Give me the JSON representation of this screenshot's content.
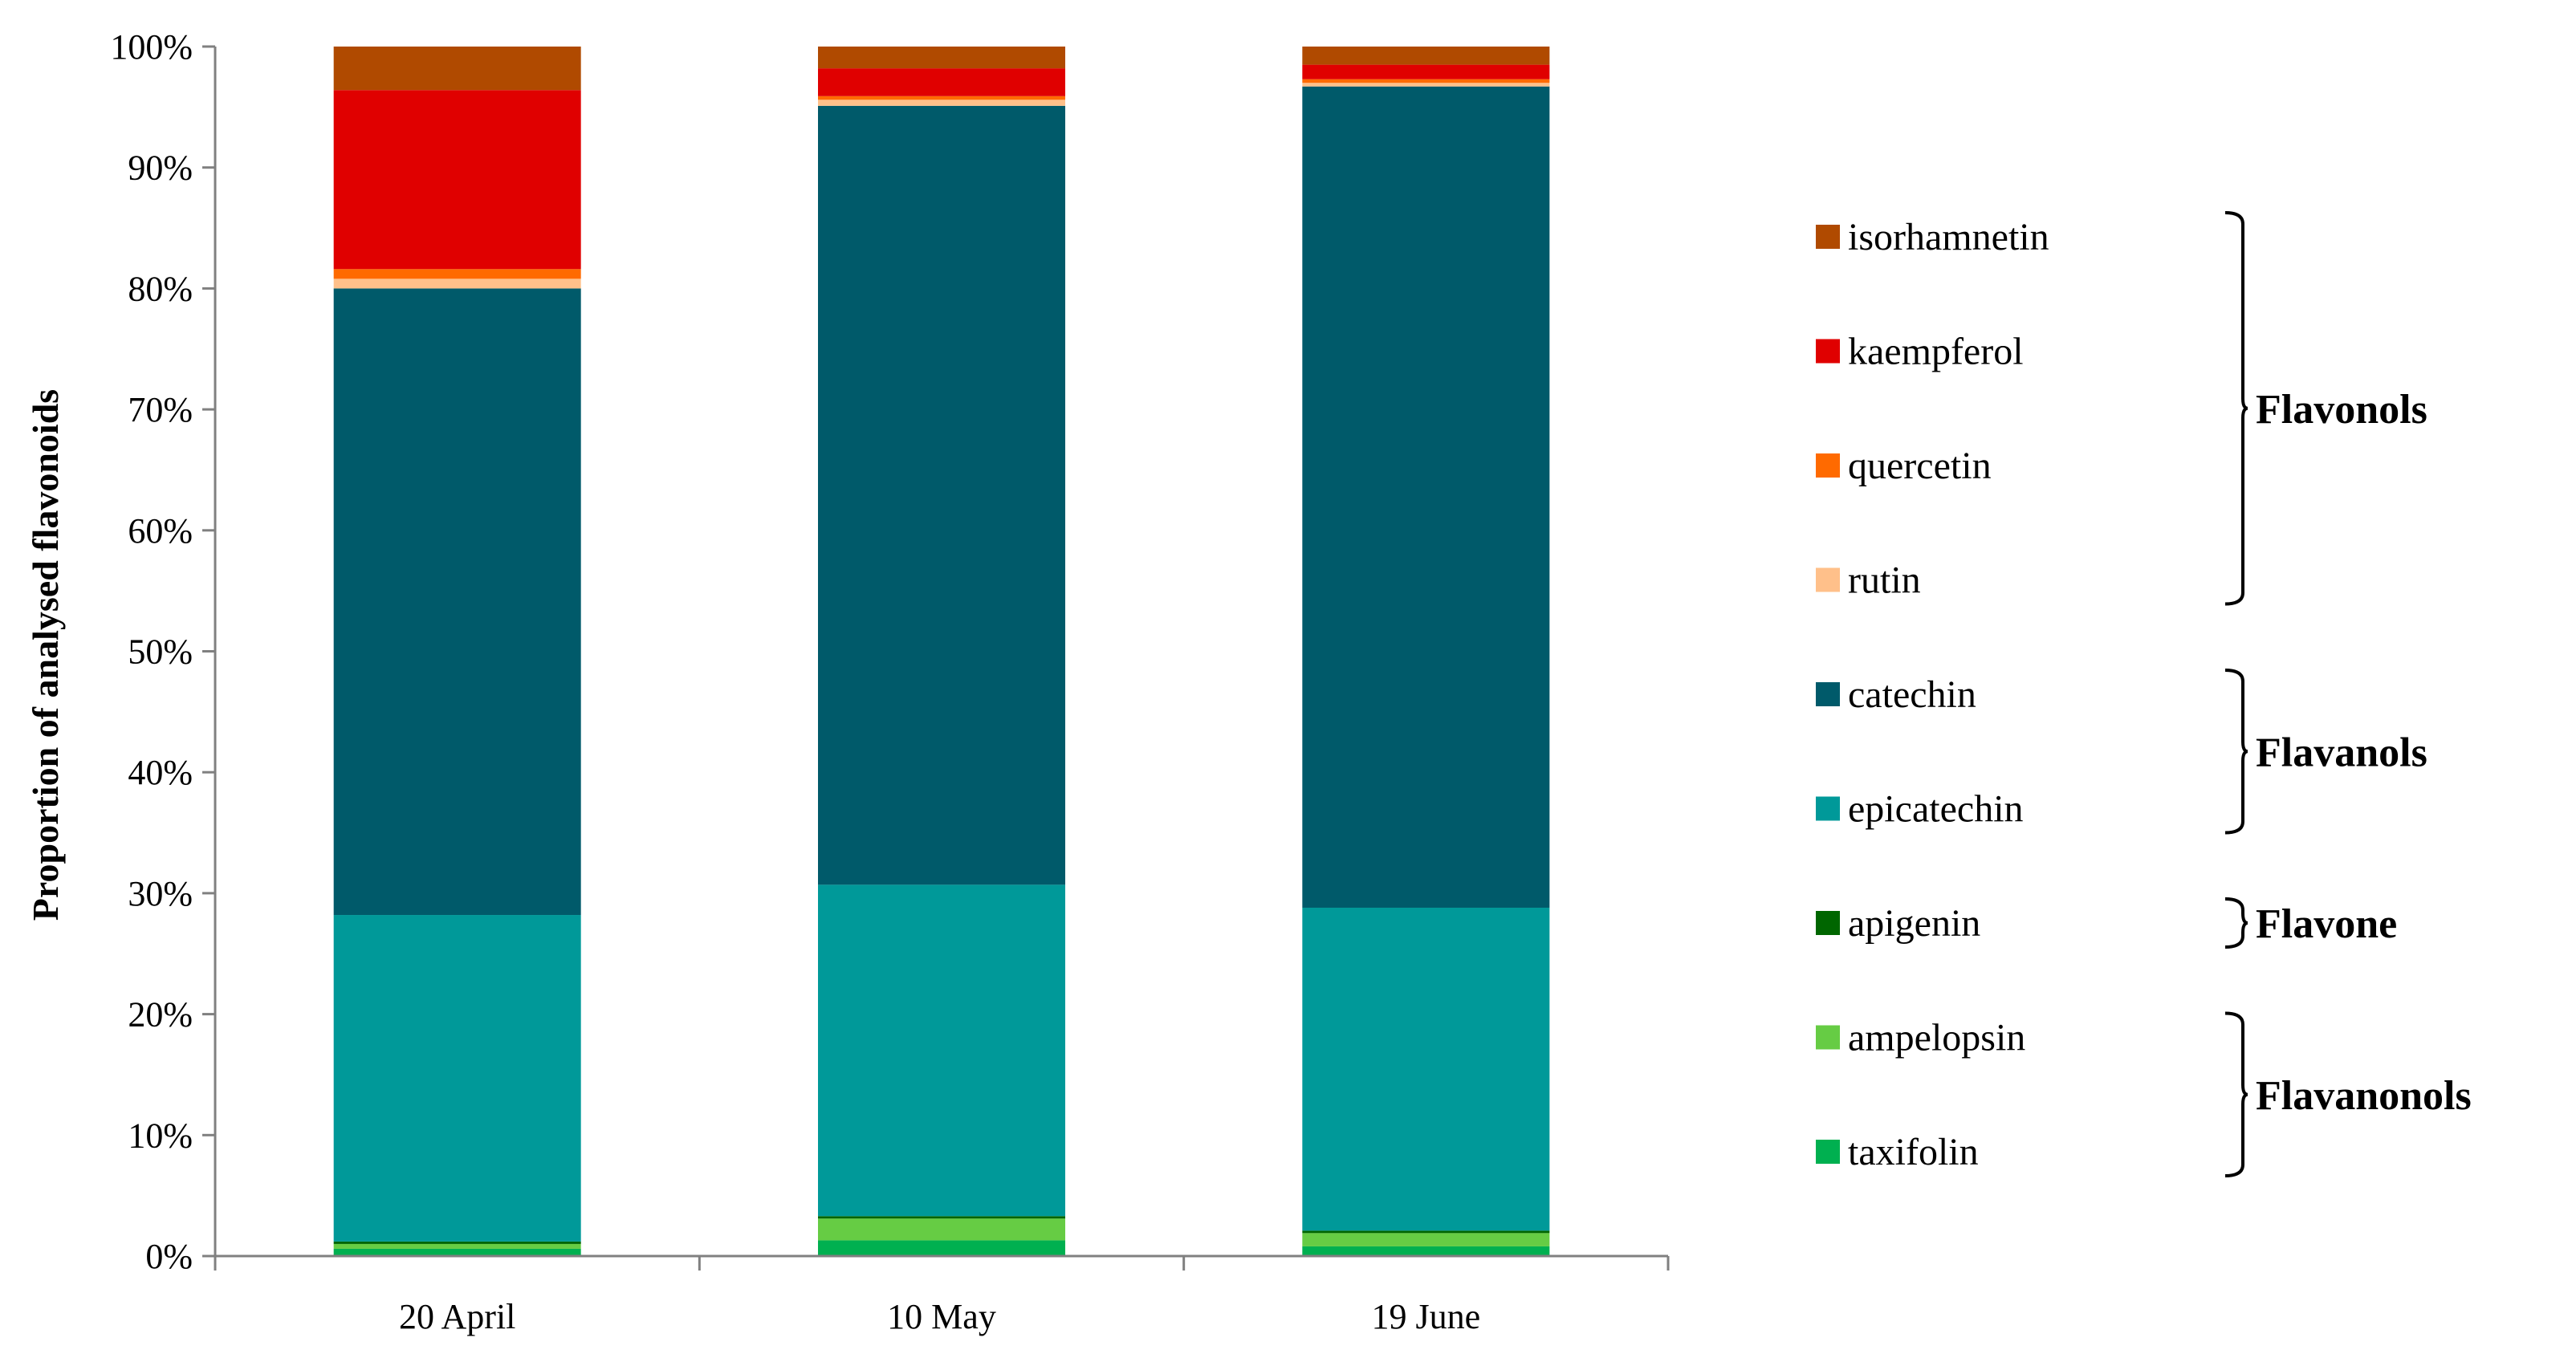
{
  "chart_data": {
    "type": "bar",
    "stacked": true,
    "ylabel": "Proportion of analysed flavonoids",
    "xlabel": "",
    "ylim": [
      0,
      100
    ],
    "y_tick_labels": [
      "0%",
      "10%",
      "20%",
      "30%",
      "40%",
      "50%",
      "60%",
      "70%",
      "80%",
      "90%",
      "100%"
    ],
    "categories": [
      "20 April",
      "10 May",
      "19 June"
    ],
    "series": [
      {
        "name": "taxifolin",
        "color": "#00B050",
        "values": [
          0.6,
          1.3,
          0.8
        ]
      },
      {
        "name": "ampelopsin",
        "color": "#66CC44",
        "values": [
          0.4,
          1.8,
          1.1
        ]
      },
      {
        "name": "apigenin",
        "color": "#006600",
        "values": [
          0.2,
          0.2,
          0.2
        ]
      },
      {
        "name": "epicatechin",
        "color": "#009999",
        "values": [
          27.0,
          27.4,
          26.7
        ]
      },
      {
        "name": "catechin",
        "color": "#005A6A",
        "values": [
          51.8,
          64.4,
          67.9
        ]
      },
      {
        "name": "rutin",
        "color": "#FFC08A",
        "values": [
          0.8,
          0.5,
          0.3
        ]
      },
      {
        "name": "quercetin",
        "color": "#FF6A00",
        "values": [
          0.8,
          0.3,
          0.3
        ]
      },
      {
        "name": "kaempferol",
        "color": "#E00000",
        "values": [
          14.8,
          2.3,
          1.2
        ]
      },
      {
        "name": "isorhamnetin",
        "color": "#B04A00",
        "values": [
          3.6,
          1.8,
          1.5
        ]
      }
    ],
    "legend_order": [
      "isorhamnetin",
      "kaempferol",
      "quercetin",
      "rutin",
      "catechin",
      "epicatechin",
      "apigenin",
      "ampelopsin",
      "taxifolin"
    ],
    "legend_placement": "right",
    "groups": [
      {
        "label": "Flavonols",
        "members": [
          "isorhamnetin",
          "kaempferol",
          "quercetin",
          "rutin"
        ]
      },
      {
        "label": "Flavanols",
        "members": [
          "catechin",
          "epicatechin"
        ]
      },
      {
        "label": "Flavone",
        "members": [
          "apigenin"
        ]
      },
      {
        "label": "Flavanonols",
        "members": [
          "ampelopsin",
          "taxifolin"
        ]
      }
    ],
    "grid": false
  }
}
